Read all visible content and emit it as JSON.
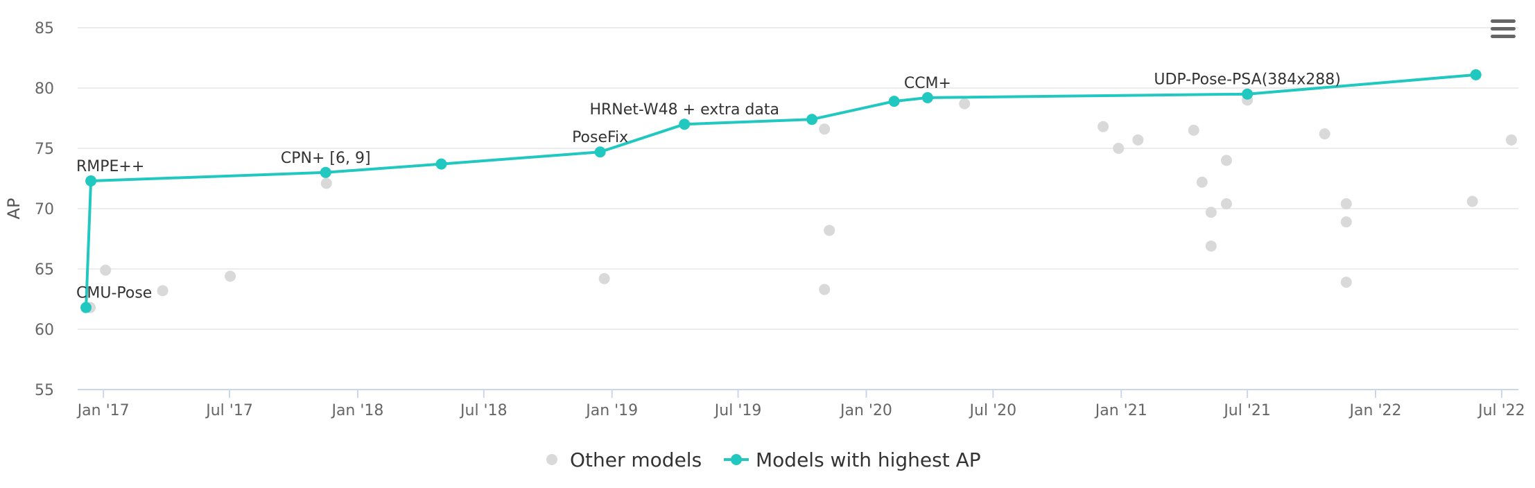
{
  "chart_data": {
    "type": "scatter",
    "ylabel": "AP",
    "ylim": [
      55,
      85
    ],
    "y_ticks": [
      "55",
      "60",
      "65",
      "70",
      "75",
      "80",
      "85"
    ],
    "x_ticks": [
      {
        "label": "Jan '17",
        "date": "2017-01-01"
      },
      {
        "label": "Jul '17",
        "date": "2017-07-01"
      },
      {
        "label": "Jan '18",
        "date": "2018-01-01"
      },
      {
        "label": "Jul '18",
        "date": "2018-07-01"
      },
      {
        "label": "Jan '19",
        "date": "2019-01-01"
      },
      {
        "label": "Jul '19",
        "date": "2019-07-01"
      },
      {
        "label": "Jan '20",
        "date": "2020-01-01"
      },
      {
        "label": "Jul '20",
        "date": "2020-07-01"
      },
      {
        "label": "Jan '21",
        "date": "2021-01-01"
      },
      {
        "label": "Jul '21",
        "date": "2021-07-01"
      },
      {
        "label": "Jan '22",
        "date": "2022-01-01"
      },
      {
        "label": "Jul '22",
        "date": "2022-07-01"
      }
    ],
    "xlim": [
      "2016-11-25",
      "2022-07-25"
    ],
    "grid": true,
    "legend_placement": "bottom",
    "series": [
      {
        "name": "Other models",
        "color": "#d9d9d9",
        "points": [
          {
            "x": "2016-12-13",
            "y": 61.8
          },
          {
            "x": "2017-01-04",
            "y": 64.9
          },
          {
            "x": "2017-03-27",
            "y": 63.2
          },
          {
            "x": "2017-07-02",
            "y": 64.4
          },
          {
            "x": "2017-11-17",
            "y": 72.1
          },
          {
            "x": "2018-12-21",
            "y": 64.2
          },
          {
            "x": "2019-11-02",
            "y": 76.6
          },
          {
            "x": "2019-11-02",
            "y": 63.3
          },
          {
            "x": "2019-11-09",
            "y": 68.2
          },
          {
            "x": "2020-05-21",
            "y": 78.7
          },
          {
            "x": "2020-12-06",
            "y": 76.8
          },
          {
            "x": "2020-12-28",
            "y": 75.0
          },
          {
            "x": "2021-01-25",
            "y": 75.7
          },
          {
            "x": "2021-04-15",
            "y": 76.5
          },
          {
            "x": "2021-04-27",
            "y": 72.2
          },
          {
            "x": "2021-05-10",
            "y": 69.7
          },
          {
            "x": "2021-05-10",
            "y": 66.9
          },
          {
            "x": "2021-06-01",
            "y": 74.0
          },
          {
            "x": "2021-06-01",
            "y": 70.4
          },
          {
            "x": "2021-07-01",
            "y": 79.0
          },
          {
            "x": "2021-10-20",
            "y": 76.2
          },
          {
            "x": "2021-11-20",
            "y": 70.4
          },
          {
            "x": "2021-11-20",
            "y": 68.9
          },
          {
            "x": "2021-11-20",
            "y": 63.9
          },
          {
            "x": "2022-05-20",
            "y": 70.6
          },
          {
            "x": "2022-07-15",
            "y": 75.7
          }
        ]
      },
      {
        "name": "Models with highest AP",
        "color": "#20c8c0",
        "points": [
          {
            "x": "2016-12-07",
            "y": 61.8,
            "label": "CMU-Pose"
          },
          {
            "x": "2016-12-14",
            "y": 72.3,
            "label": "RMPE++"
          },
          {
            "x": "2017-11-16",
            "y": 73.0,
            "label": "CPN+ [6, 9]"
          },
          {
            "x": "2018-05-01",
            "y": 73.7,
            "label": ""
          },
          {
            "x": "2018-12-15",
            "y": 74.7,
            "label": "PoseFix"
          },
          {
            "x": "2019-04-15",
            "y": 77.0,
            "label": "HRNet-W48 + extra data"
          },
          {
            "x": "2019-10-15",
            "y": 77.4,
            "label": ""
          },
          {
            "x": "2020-02-10",
            "y": 78.9,
            "label": ""
          },
          {
            "x": "2020-03-29",
            "y": 79.2,
            "label": "CCM+"
          },
          {
            "x": "2021-07-01",
            "y": 79.5,
            "label": "UDP-Pose-PSA(384x288)"
          },
          {
            "x": "2022-05-25",
            "y": 81.1,
            "label": ""
          }
        ]
      }
    ]
  }
}
